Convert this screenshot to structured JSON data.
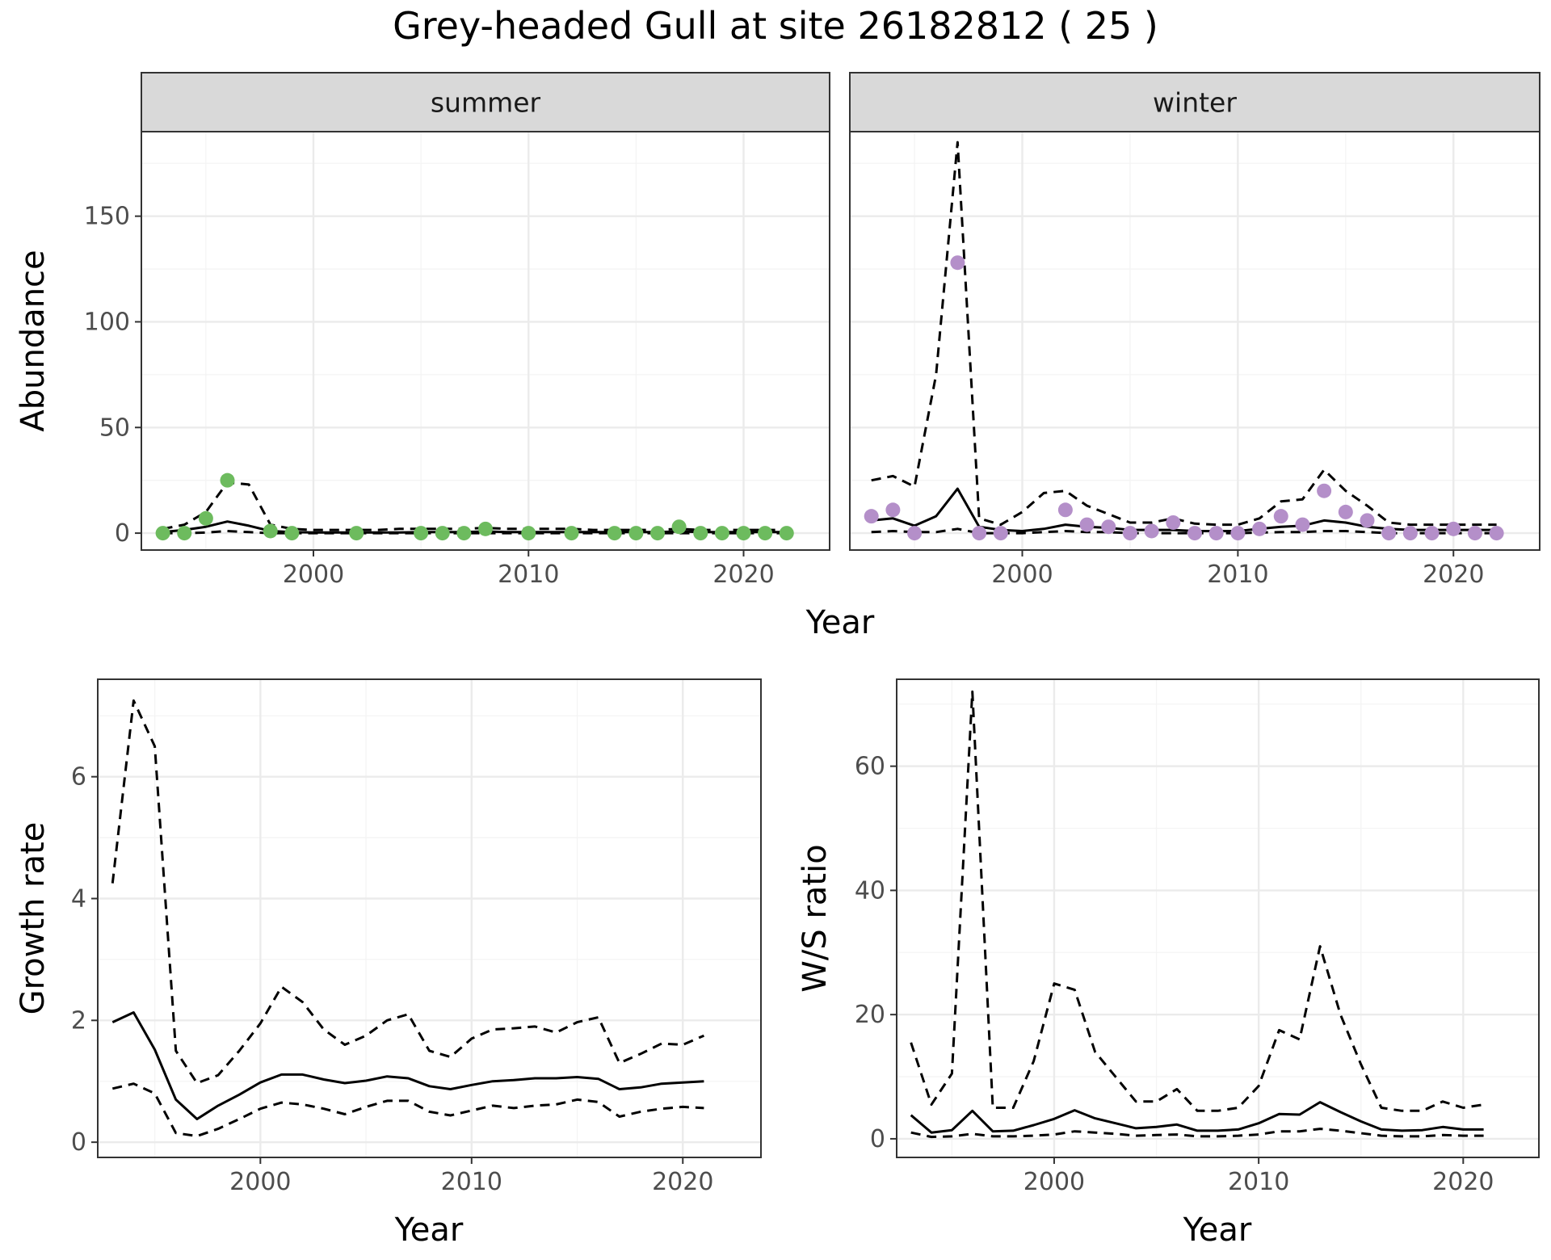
{
  "title": "Grey-headed Gull at site 26182812 ( 25 )",
  "colors": {
    "summer_points": "#6dbb5e",
    "winter_points": "#b48fc9",
    "line": "#000000"
  },
  "chart_data": [
    {
      "type": "line",
      "panel": "summer",
      "strip_label": "summer",
      "xlabel": "Year",
      "ylabel": "Abundance",
      "xlim": [
        1992,
        2024
      ],
      "ylim": [
        -8,
        190
      ],
      "xticks": [
        2000,
        2010,
        2020
      ],
      "yticks": [
        0,
        50,
        100,
        150
      ],
      "grid": true,
      "x": [
        1993,
        1994,
        1995,
        1996,
        1997,
        1998,
        1999,
        2000,
        2001,
        2002,
        2003,
        2004,
        2005,
        2006,
        2007,
        2008,
        2009,
        2010,
        2011,
        2012,
        2013,
        2014,
        2015,
        2016,
        2017,
        2018,
        2019,
        2020,
        2021,
        2022
      ],
      "series": [
        {
          "role": "estimate",
          "style": "solid",
          "values": [
            0.5,
            1.5,
            3,
            5.5,
            3.5,
            1,
            0.5,
            0.3,
            0.3,
            0.3,
            0.3,
            0.3,
            0.5,
            0.5,
            0.5,
            0.8,
            0.5,
            0.5,
            0.5,
            0.5,
            0.5,
            0.5,
            0.5,
            0.5,
            0.8,
            0.5,
            0.5,
            0.5,
            0.5,
            0.5
          ]
        },
        {
          "role": "upper",
          "style": "dashed",
          "values": [
            2,
            4,
            10,
            24,
            23,
            4,
            2,
            1.5,
            1.5,
            1.5,
            1.5,
            2,
            2,
            2,
            2,
            2.5,
            2,
            2,
            2,
            2,
            1.5,
            1.5,
            1.5,
            1.5,
            2,
            1.5,
            1.5,
            1.5,
            1.5,
            1.5
          ]
        },
        {
          "role": "lower",
          "style": "dashed",
          "values": [
            0,
            0,
            0.3,
            1,
            0.5,
            0,
            0,
            0,
            0,
            0,
            0,
            0,
            0,
            0,
            0,
            0,
            0,
            0,
            0,
            0,
            0,
            0,
            0,
            0,
            0,
            0,
            0,
            0,
            0,
            0
          ]
        }
      ],
      "points": {
        "x": [
          1993,
          1994,
          1995,
          1996,
          1998,
          1999,
          2002,
          2005,
          2006,
          2007,
          2008,
          2010,
          2012,
          2014,
          2015,
          2016,
          2017,
          2018,
          2019,
          2020,
          2021,
          2022
        ],
        "y": [
          0,
          0,
          7,
          25,
          1,
          0,
          0,
          0,
          0,
          0,
          2,
          0,
          0,
          0,
          0,
          0,
          3,
          0,
          0,
          0,
          0,
          0
        ]
      }
    },
    {
      "type": "line",
      "panel": "winter",
      "strip_label": "winter",
      "xlabel": "Year",
      "ylabel": "Abundance",
      "xlim": [
        1992,
        2024
      ],
      "ylim": [
        -8,
        190
      ],
      "xticks": [
        2000,
        2010,
        2020
      ],
      "yticks": [
        0,
        50,
        100,
        150
      ],
      "grid": true,
      "x": [
        1993,
        1994,
        1995,
        1996,
        1997,
        1998,
        1999,
        2000,
        2001,
        2002,
        2003,
        2004,
        2005,
        2006,
        2007,
        2008,
        2009,
        2010,
        2011,
        2012,
        2013,
        2014,
        2015,
        2016,
        2017,
        2018,
        2019,
        2020,
        2021,
        2022
      ],
      "series": [
        {
          "role": "estimate",
          "style": "solid",
          "values": [
            6,
            7,
            3.5,
            8,
            21,
            3,
            1.5,
            1,
            2,
            4,
            3,
            2.5,
            1.5,
            1.5,
            1.5,
            1,
            1,
            1,
            2,
            3,
            3.5,
            6,
            5,
            3,
            2,
            1.5,
            1.5,
            1.5,
            1.5,
            1.5
          ]
        },
        {
          "role": "upper",
          "style": "dashed",
          "values": [
            25,
            27,
            22,
            75,
            185,
            7,
            4,
            10,
            19,
            20,
            13,
            9,
            5,
            5,
            7,
            4.5,
            4,
            4,
            7,
            15,
            16,
            30,
            20,
            13,
            5,
            4,
            4,
            4,
            4,
            4
          ]
        },
        {
          "role": "lower",
          "style": "dashed",
          "values": [
            0.5,
            1,
            0.5,
            0.5,
            2,
            0,
            0,
            0,
            0.5,
            1,
            0.5,
            0.5,
            0,
            0,
            0,
            0,
            0,
            0,
            0.3,
            0.5,
            0.5,
            1,
            1,
            0.5,
            0,
            0,
            0,
            0,
            0,
            0
          ]
        }
      ],
      "points": {
        "x": [
          1993,
          1994,
          1995,
          1997,
          1998,
          1999,
          2002,
          2003,
          2004,
          2005,
          2006,
          2007,
          2008,
          2009,
          2010,
          2011,
          2012,
          2013,
          2014,
          2015,
          2016,
          2017,
          2018,
          2019,
          2020,
          2021,
          2022
        ],
        "y": [
          8,
          11,
          0,
          128,
          0,
          0,
          11,
          4,
          3,
          0,
          1,
          5,
          0,
          0,
          0,
          2,
          8,
          4,
          20,
          10,
          6,
          0,
          0,
          0,
          2,
          0,
          0
        ]
      }
    },
    {
      "type": "line",
      "panel": "growth",
      "xlabel": "Year",
      "ylabel": "Growth rate",
      "xlim": [
        1992.3,
        2023.7
      ],
      "ylim": [
        -0.25,
        7.6
      ],
      "xticks": [
        2000,
        2010,
        2020
      ],
      "yticks": [
        0,
        2,
        4,
        6
      ],
      "grid": true,
      "x": [
        1993,
        1994,
        1995,
        1996,
        1997,
        1998,
        1999,
        2000,
        2001,
        2002,
        2003,
        2004,
        2005,
        2006,
        2007,
        2008,
        2009,
        2010,
        2011,
        2012,
        2013,
        2014,
        2015,
        2016,
        2017,
        2018,
        2019,
        2020,
        2021
      ],
      "series": [
        {
          "role": "estimate",
          "style": "solid",
          "values": [
            1.97,
            2.13,
            1.52,
            0.7,
            0.38,
            0.6,
            0.78,
            0.98,
            1.11,
            1.11,
            1.03,
            0.97,
            1.01,
            1.08,
            1.05,
            0.92,
            0.87,
            0.94,
            1.0,
            1.02,
            1.05,
            1.05,
            1.07,
            1.04,
            0.87,
            0.9,
            0.96,
            0.98,
            1.0
          ]
        },
        {
          "role": "upper",
          "style": "dashed",
          "values": [
            4.25,
            7.25,
            6.5,
            1.5,
            0.97,
            1.1,
            1.5,
            1.95,
            2.55,
            2.3,
            1.85,
            1.6,
            1.75,
            2.0,
            2.1,
            1.5,
            1.4,
            1.7,
            1.85,
            1.87,
            1.9,
            1.8,
            1.97,
            2.05,
            1.3,
            1.45,
            1.62,
            1.6,
            1.75
          ]
        },
        {
          "role": "lower",
          "style": "dashed",
          "values": [
            0.88,
            0.96,
            0.8,
            0.15,
            0.1,
            0.22,
            0.38,
            0.55,
            0.65,
            0.62,
            0.55,
            0.46,
            0.58,
            0.68,
            0.68,
            0.5,
            0.44,
            0.52,
            0.6,
            0.56,
            0.6,
            0.62,
            0.7,
            0.66,
            0.42,
            0.5,
            0.55,
            0.58,
            0.56
          ]
        }
      ]
    },
    {
      "type": "line",
      "panel": "ratio",
      "xlabel": "Year",
      "ylabel": "W/S ratio",
      "xlim": [
        1992.3,
        2023.7
      ],
      "ylim": [
        -3,
        74
      ],
      "xticks": [
        2000,
        2010,
        2020
      ],
      "yticks": [
        0,
        20,
        40,
        60
      ],
      "grid": true,
      "x": [
        1993,
        1994,
        1995,
        1996,
        1997,
        1998,
        1999,
        2000,
        2001,
        2002,
        2003,
        2004,
        2005,
        2006,
        2007,
        2008,
        2009,
        2010,
        2011,
        2012,
        2013,
        2014,
        2015,
        2016,
        2017,
        2018,
        2019,
        2020,
        2021
      ],
      "series": [
        {
          "role": "estimate",
          "style": "solid",
          "values": [
            3.8,
            1,
            1.4,
            4.5,
            1.2,
            1.3,
            2.2,
            3.2,
            4.6,
            3.3,
            2.5,
            1.7,
            1.9,
            2.3,
            1.3,
            1.3,
            1.5,
            2.5,
            4.0,
            3.9,
            5.9,
            4.3,
            2.8,
            1.5,
            1.3,
            1.4,
            1.9,
            1.5,
            1.5
          ]
        },
        {
          "role": "upper",
          "style": "dashed",
          "values": [
            15.5,
            5.5,
            10.5,
            72,
            5,
            5,
            12.5,
            25,
            24,
            14,
            10,
            6,
            6,
            8,
            4.5,
            4.5,
            5,
            8.5,
            17.5,
            16,
            31,
            20,
            12,
            5,
            4.5,
            4.5,
            6,
            5,
            5.5
          ]
        },
        {
          "role": "lower",
          "style": "dashed",
          "values": [
            1,
            0.3,
            0.4,
            0.8,
            0.4,
            0.4,
            0.5,
            0.7,
            1.2,
            1.0,
            0.8,
            0.5,
            0.6,
            0.7,
            0.4,
            0.4,
            0.5,
            0.7,
            1.2,
            1.2,
            1.6,
            1.3,
            0.9,
            0.5,
            0.4,
            0.4,
            0.6,
            0.5,
            0.5
          ]
        }
      ]
    }
  ]
}
